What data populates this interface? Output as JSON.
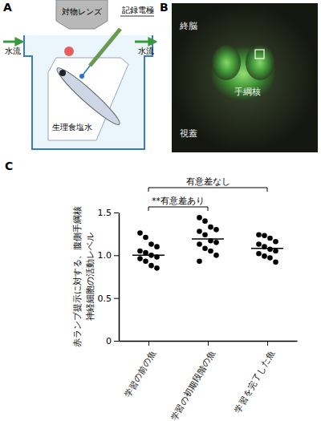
{
  "panel_a": {
    "label": "A",
    "objective_lens": "対物レンズ",
    "electrode": "記録電極",
    "flow_left": "水流",
    "flow_right": "水流",
    "saline": "生理食塩水"
  },
  "panel_b": {
    "label": "B",
    "telencephalon": "終脳",
    "habenula": "手綱核",
    "tectum": "視蓋"
  },
  "chart_data": {
    "type": "scatter",
    "panel_label": "C",
    "y_label": [
      "赤ランプ提示に対する、腹側手綱核",
      "神経細胞の活動レベル"
    ],
    "categories": [
      "学習の前の魚",
      "学習の初期段階の魚",
      "学習を完了した魚"
    ],
    "values": [
      [
        1.26,
        1.21,
        1.13,
        1.1,
        1.05,
        1.03,
        1.0,
        0.98,
        0.96,
        0.93,
        0.88,
        0.85
      ],
      [
        1.44,
        1.4,
        1.33,
        1.3,
        1.28,
        1.24,
        1.17,
        1.15,
        1.13,
        1.08,
        1.05,
        1.0,
        0.93
      ],
      [
        1.24,
        1.23,
        1.2,
        1.16,
        1.13,
        1.1,
        1.07,
        1.05,
        1.02,
        0.99,
        0.97,
        0.92
      ]
    ],
    "means": [
      1.0,
      1.19,
      1.08
    ],
    "color": "#000000",
    "ylim": [
      0,
      1.5
    ],
    "yticks": [
      0,
      0.5,
      {
        "value": 1,
        "label": "1.0"
      },
      1.5
    ],
    "annotations": [
      {
        "text": "有意差なし",
        "from": 0,
        "to": 2
      },
      {
        "text": "**有意差あり",
        "from": 0,
        "to": 1
      }
    ]
  }
}
